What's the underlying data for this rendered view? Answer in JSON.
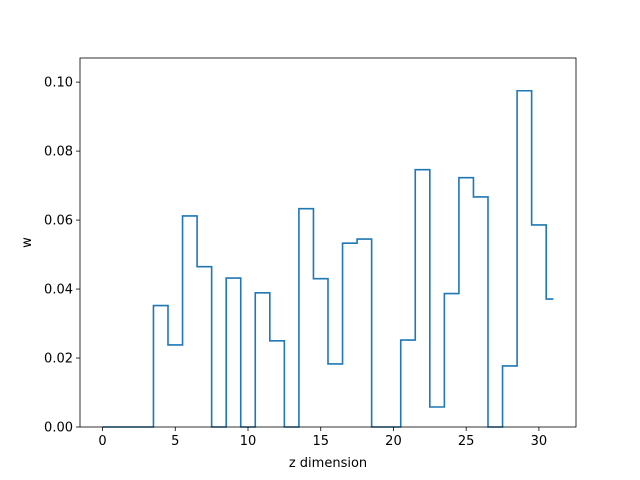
{
  "chart_data": {
    "type": "line",
    "drawstyle": "steps-mid",
    "title": "",
    "xlabel": "z dimension",
    "ylabel": "w",
    "xlim": [
      -1.55,
      32.55
    ],
    "ylim": [
      0,
      0.107
    ],
    "xticks": [
      0,
      5,
      10,
      15,
      20,
      25,
      30
    ],
    "yticks": [
      0.0,
      0.02,
      0.04,
      0.06,
      0.08,
      0.1
    ],
    "xtick_labels": [
      "0",
      "5",
      "10",
      "15",
      "20",
      "25",
      "30"
    ],
    "ytick_labels": [
      "0.00",
      "0.02",
      "0.04",
      "0.06",
      "0.08",
      "0.10"
    ],
    "grid": false,
    "series": [
      {
        "color": "#1f77b4",
        "x": [
          0,
          1,
          2,
          3,
          4,
          5,
          6,
          7,
          8,
          9,
          10,
          11,
          12,
          13,
          14,
          15,
          16,
          17,
          18,
          19,
          20,
          21,
          22,
          23,
          24,
          25,
          26,
          27,
          28,
          29,
          30,
          31
        ],
        "values": [
          0.0,
          0.0,
          0.0,
          0.0,
          0.0352,
          0.0238,
          0.0612,
          0.0465,
          0.0,
          0.0432,
          0.0,
          0.0389,
          0.025,
          0.0,
          0.0633,
          0.043,
          0.0183,
          0.0533,
          0.0545,
          0.0,
          0.0,
          0.0252,
          0.0746,
          0.0058,
          0.0387,
          0.0723,
          0.0667,
          0.0,
          0.0177,
          0.0975,
          0.0586,
          0.0371
        ]
      }
    ]
  }
}
